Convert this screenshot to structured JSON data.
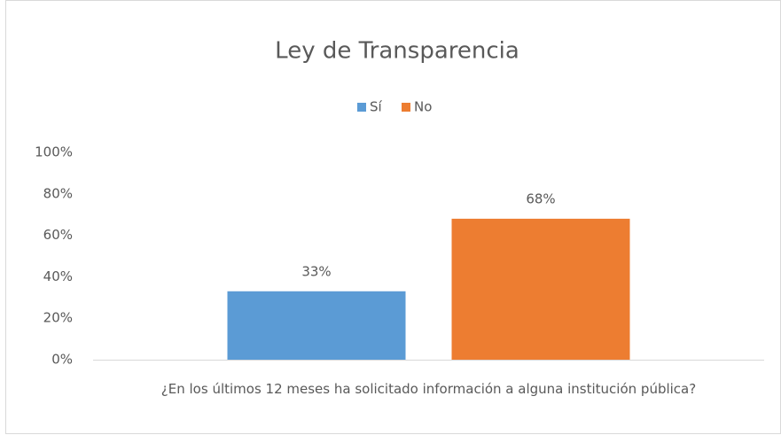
{
  "chart_data": {
    "type": "bar",
    "title": "Ley de Transparencia",
    "categories": [
      "¿En los últimos 12 meses ha solicitado información a alguna institución pública?"
    ],
    "series": [
      {
        "name": "Sí",
        "color": "#5b9bd5",
        "values": [
          33
        ],
        "value_labels": [
          "33%"
        ]
      },
      {
        "name": "No",
        "color": "#ed7d31",
        "values": [
          68
        ],
        "value_labels": [
          "68%"
        ]
      }
    ],
    "ylim": [
      0,
      100
    ],
    "yticks": [
      {
        "value": 0,
        "label": "0%"
      },
      {
        "value": 20,
        "label": "20%"
      },
      {
        "value": 40,
        "label": "40%"
      },
      {
        "value": 60,
        "label": "60%"
      },
      {
        "value": 80,
        "label": "80%"
      },
      {
        "value": 100,
        "label": "100%"
      }
    ],
    "grid": false,
    "legend": "top"
  }
}
